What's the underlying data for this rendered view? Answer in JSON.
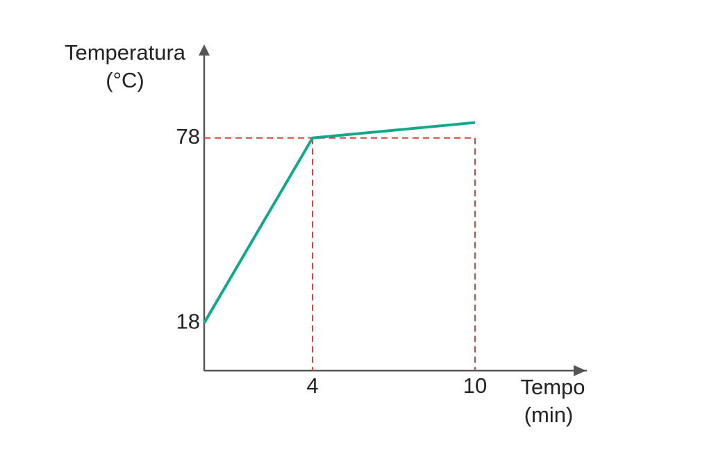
{
  "chart_data": {
    "type": "line",
    "x_label": [
      "Tempo",
      "(min)"
    ],
    "y_label": [
      "Temperatura",
      "(°C)"
    ],
    "x": [
      0,
      4,
      10
    ],
    "series": [
      {
        "color": "#14a88a",
        "values": [
          18,
          78,
          83
        ]
      }
    ],
    "xlim": [
      0,
      14
    ],
    "ylim": [
      2.5,
      107
    ],
    "xticks": [
      4,
      10
    ],
    "yticks": [
      18,
      78
    ],
    "guide_color": "#d9413a"
  }
}
